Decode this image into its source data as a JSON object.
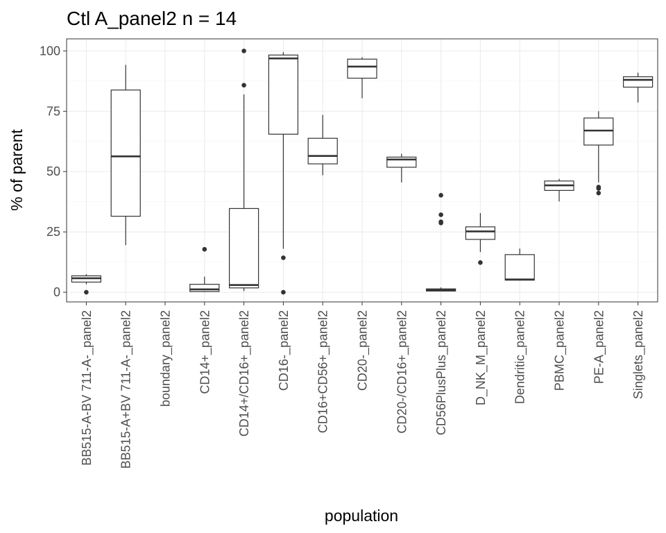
{
  "chart_data": {
    "type": "boxplot",
    "title": "Ctl A_panel2 n = 14",
    "xlabel": "population",
    "ylabel": "% of parent",
    "ylim": [
      -4,
      105
    ],
    "yticks": [
      0,
      25,
      50,
      75,
      100
    ],
    "grid": true,
    "legend": "none",
    "categories": [
      "BB515-A-BV 711-A-_panel2",
      "BB515-A+BV 711-A-_panel2",
      "boundary_panel2",
      "CD14+_panel2",
      "CD14+/CD16+_panel2",
      "CD16-_panel2",
      "CD16+CD56+_panel2",
      "CD20-_panel2",
      "CD20-/CD16+_panel2",
      "CD56PlusPlus_panel2",
      "D_NK_M_panel2",
      "Dendritic_panel2",
      "PBMC_panel2",
      "PE-A_panel2",
      "Singlets_panel2"
    ],
    "boxes": [
      {
        "category": "BB515-A-BV 711-A-_panel2",
        "min": 3.3,
        "q1": 4.2,
        "median": 5.8,
        "q3": 6.8,
        "max": 7.5,
        "outliers": [
          0
        ]
      },
      {
        "category": "BB515-A+BV 711-A-_panel2",
        "min": 19.5,
        "q1": 31.5,
        "median": 56.3,
        "q3": 83.8,
        "max": 94.2,
        "outliers": []
      },
      {
        "category": "boundary_panel2",
        "min": null,
        "q1": null,
        "median": null,
        "q3": null,
        "max": null,
        "outliers": []
      },
      {
        "category": "CD14+_panel2",
        "min": 0,
        "q1": 0.3,
        "median": 1.2,
        "q3": 3.3,
        "max": 6.5,
        "outliers": [
          17.8
        ]
      },
      {
        "category": "CD14+/CD16+_panel2",
        "min": 0.5,
        "q1": 1.8,
        "median": 3.0,
        "q3": 34.7,
        "max": 82,
        "outliers": [
          85.8,
          100
        ]
      },
      {
        "category": "CD16-_panel2",
        "min": 18,
        "q1": 65.5,
        "median": 96.9,
        "q3": 98.3,
        "max": 99.5,
        "outliers": [
          14.3,
          0
        ]
      },
      {
        "category": "CD16+CD56+_panel2",
        "min": 48.5,
        "q1": 53.2,
        "median": 56.5,
        "q3": 63.8,
        "max": 73.5,
        "outliers": []
      },
      {
        "category": "CD20-_panel2",
        "min": 80.4,
        "q1": 88.7,
        "median": 93.5,
        "q3": 96.6,
        "max": 97.4,
        "outliers": []
      },
      {
        "category": "CD20-/CD16+_panel2",
        "min": 45.5,
        "q1": 51.8,
        "median": 55.0,
        "q3": 56.0,
        "max": 57.4,
        "outliers": []
      },
      {
        "category": "CD56PlusPlus_panel2",
        "min": 0.3,
        "q1": 0.5,
        "median": 0.9,
        "q3": 1.4,
        "max": 2.0,
        "outliers": [
          28.7,
          29.2,
          32.1,
          40.2
        ]
      },
      {
        "category": "D_NK_M_panel2",
        "min": 16.7,
        "q1": 21.9,
        "median": 25.2,
        "q3": 27.1,
        "max": 32.8,
        "outliers": [
          12.3
        ]
      },
      {
        "category": "Dendritic_panel2",
        "min": 5.0,
        "q1": 5.0,
        "median": 5.3,
        "q3": 15.6,
        "max": 18.1,
        "outliers": []
      },
      {
        "category": "PBMC_panel2",
        "min": 37.6,
        "q1": 42.2,
        "median": 44.3,
        "q3": 46.1,
        "max": 47.0,
        "outliers": []
      },
      {
        "category": "PE-A_panel2",
        "min": 45.5,
        "q1": 61.0,
        "median": 67.0,
        "q3": 72.2,
        "max": 75.0,
        "outliers": [
          41.1,
          43.0,
          43.6
        ]
      },
      {
        "category": "Singlets_panel2",
        "min": 78.6,
        "q1": 85.0,
        "median": 88.0,
        "q3": 89.3,
        "max": 91.0,
        "outliers": []
      }
    ]
  }
}
